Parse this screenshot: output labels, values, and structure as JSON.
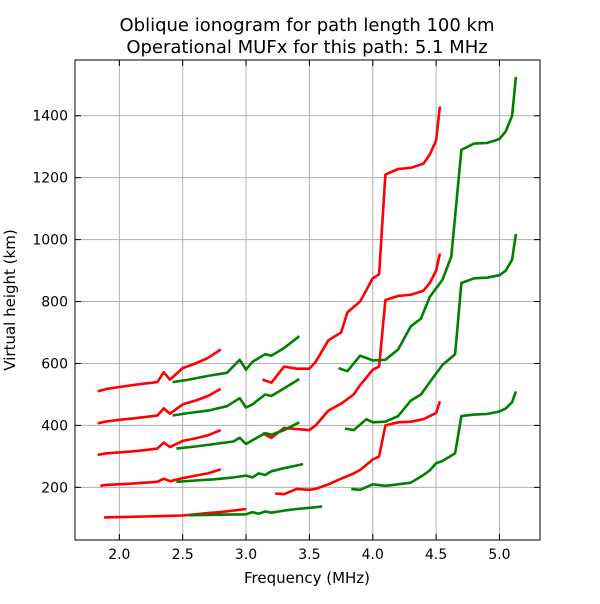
{
  "chart_data": {
    "type": "line",
    "title": "Oblique ionogram for path length 100 km",
    "subtitle": "Operational MUFx for this path: 5.1 MHz",
    "xlabel": "Frequency (MHz)",
    "ylabel": "Virtual height (km)",
    "xlim": [
      1.65,
      5.32
    ],
    "ylim": [
      30,
      1580
    ],
    "x_ticks": [
      2.0,
      2.5,
      3.0,
      3.5,
      4.0,
      4.5,
      5.0
    ],
    "x_tick_labels": [
      "2.0",
      "2.5",
      "3.0",
      "3.5",
      "4.0",
      "4.5",
      "5.0"
    ],
    "y_ticks": [
      200,
      400,
      600,
      800,
      1000,
      1200,
      1400
    ],
    "y_tick_labels": [
      "200",
      "400",
      "600",
      "800",
      "1000",
      "1200",
      "1400"
    ],
    "grid": true,
    "colors": {
      "red": "#ff0000",
      "green": "#008000",
      "grid": "#b0b0b0"
    },
    "series": [
      {
        "color": "red",
        "x": [
          1.88,
          2.0,
          2.1,
          2.2,
          2.3,
          2.4,
          2.5,
          2.6,
          2.7,
          2.8,
          2.9,
          3.0
        ],
        "y": [
          103,
          104,
          105,
          106,
          107,
          108,
          109,
          113,
          117,
          120,
          125,
          130
        ]
      },
      {
        "color": "red",
        "x": [
          1.85,
          1.9,
          2.0,
          2.1,
          2.2,
          2.3,
          2.35,
          2.4,
          2.5,
          2.6,
          2.7,
          2.8
        ],
        "y": [
          205,
          208,
          210,
          212,
          215,
          218,
          228,
          220,
          230,
          238,
          245,
          258
        ]
      },
      {
        "color": "red",
        "x": [
          1.83,
          1.9,
          2.0,
          2.1,
          2.2,
          2.3,
          2.35,
          2.4,
          2.5,
          2.6,
          2.7,
          2.8
        ],
        "y": [
          305,
          310,
          313,
          316,
          320,
          325,
          345,
          330,
          350,
          358,
          368,
          385
        ]
      },
      {
        "color": "red",
        "x": [
          1.83,
          1.9,
          2.0,
          2.1,
          2.2,
          2.3,
          2.35,
          2.4,
          2.5,
          2.6,
          2.7,
          2.8
        ],
        "y": [
          407,
          413,
          418,
          422,
          427,
          432,
          455,
          438,
          468,
          480,
          495,
          518
        ]
      },
      {
        "color": "red",
        "x": [
          1.83,
          1.9,
          2.0,
          2.1,
          2.2,
          2.3,
          2.35,
          2.4,
          2.5,
          2.6,
          2.7,
          2.8
        ],
        "y": [
          510,
          518,
          524,
          530,
          535,
          540,
          572,
          548,
          585,
          600,
          618,
          645
        ]
      },
      {
        "color": "red",
        "x": [
          3.23,
          3.3,
          3.4,
          3.5,
          3.55,
          3.65,
          3.75,
          3.85,
          3.9,
          4.0,
          4.05,
          4.1,
          4.2,
          4.3,
          4.4,
          4.5,
          4.53
        ],
        "y": [
          180,
          178,
          195,
          192,
          195,
          210,
          228,
          245,
          256,
          290,
          300,
          400,
          410,
          412,
          420,
          440,
          478
        ]
      },
      {
        "color": "red",
        "x": [
          3.13,
          3.2,
          3.3,
          3.4,
          3.5,
          3.55,
          3.65,
          3.75,
          3.85,
          3.9,
          4.0,
          4.05,
          4.1,
          4.2,
          4.3,
          4.4,
          4.45,
          4.5,
          4.53
        ],
        "y": [
          375,
          360,
          392,
          388,
          385,
          400,
          448,
          470,
          500,
          530,
          580,
          590,
          805,
          818,
          822,
          835,
          860,
          900,
          955
        ]
      },
      {
        "color": "red",
        "x": [
          3.13,
          3.2,
          3.3,
          3.4,
          3.5,
          3.55,
          3.65,
          3.75,
          3.8,
          3.9,
          4.0,
          4.05,
          4.1,
          4.2,
          4.3,
          4.4,
          4.45,
          4.5,
          4.53
        ],
        "y": [
          548,
          538,
          590,
          583,
          583,
          605,
          675,
          700,
          765,
          800,
          875,
          888,
          1210,
          1228,
          1232,
          1245,
          1275,
          1320,
          1430
        ]
      },
      {
        "color": "green",
        "x": [
          2.55,
          2.7,
          2.85,
          3.0,
          3.05,
          3.1,
          3.15,
          3.2,
          3.3,
          3.4,
          3.6
        ],
        "y": [
          110,
          111,
          112,
          113,
          120,
          115,
          122,
          118,
          125,
          130,
          138
        ]
      },
      {
        "color": "green",
        "x": [
          2.45,
          2.6,
          2.75,
          2.9,
          3.0,
          3.05,
          3.1,
          3.15,
          3.2,
          3.3,
          3.45
        ],
        "y": [
          218,
          222,
          226,
          232,
          238,
          232,
          245,
          240,
          252,
          262,
          275
        ]
      },
      {
        "color": "green",
        "x": [
          2.45,
          2.6,
          2.75,
          2.9,
          2.95,
          3.0,
          3.05,
          3.15,
          3.2,
          3.3,
          3.42
        ],
        "y": [
          325,
          332,
          340,
          348,
          360,
          340,
          352,
          375,
          370,
          385,
          410
        ]
      },
      {
        "color": "green",
        "x": [
          2.42,
          2.55,
          2.7,
          2.85,
          2.95,
          3.0,
          3.05,
          3.15,
          3.2,
          3.3,
          3.42
        ],
        "y": [
          432,
          440,
          448,
          462,
          488,
          458,
          468,
          500,
          495,
          520,
          550
        ]
      },
      {
        "color": "green",
        "x": [
          2.42,
          2.55,
          2.7,
          2.85,
          2.95,
          3.0,
          3.05,
          3.15,
          3.2,
          3.3,
          3.42
        ],
        "y": [
          540,
          548,
          560,
          570,
          612,
          580,
          605,
          630,
          625,
          650,
          688
        ]
      },
      {
        "color": "green",
        "x": [
          3.83,
          3.9,
          4.0,
          4.1,
          4.2,
          4.3,
          4.4,
          4.45,
          4.5,
          4.55,
          4.65,
          4.7,
          4.8,
          4.9,
          5.0,
          5.05,
          5.1,
          5.13
        ],
        "y": [
          195,
          192,
          210,
          205,
          210,
          215,
          240,
          255,
          278,
          285,
          310,
          430,
          435,
          437,
          445,
          455,
          475,
          510
        ]
      },
      {
        "color": "green",
        "x": [
          3.78,
          3.85,
          3.95,
          4.0,
          4.1,
          4.2,
          4.3,
          4.38,
          4.45,
          4.55,
          4.65,
          4.7,
          4.8,
          4.9,
          5.0,
          5.05,
          5.1,
          5.13
        ],
        "y": [
          390,
          385,
          420,
          410,
          412,
          430,
          480,
          500,
          540,
          595,
          630,
          860,
          875,
          877,
          885,
          900,
          935,
          1018
        ]
      },
      {
        "color": "green",
        "x": [
          3.73,
          3.8,
          3.9,
          4.0,
          4.1,
          4.2,
          4.3,
          4.38,
          4.45,
          4.55,
          4.62,
          4.7,
          4.8,
          4.9,
          5.0,
          5.05,
          5.1,
          5.13
        ],
        "y": [
          585,
          575,
          625,
          610,
          612,
          645,
          720,
          745,
          815,
          870,
          945,
          1290,
          1310,
          1312,
          1325,
          1350,
          1400,
          1525
        ]
      }
    ]
  }
}
